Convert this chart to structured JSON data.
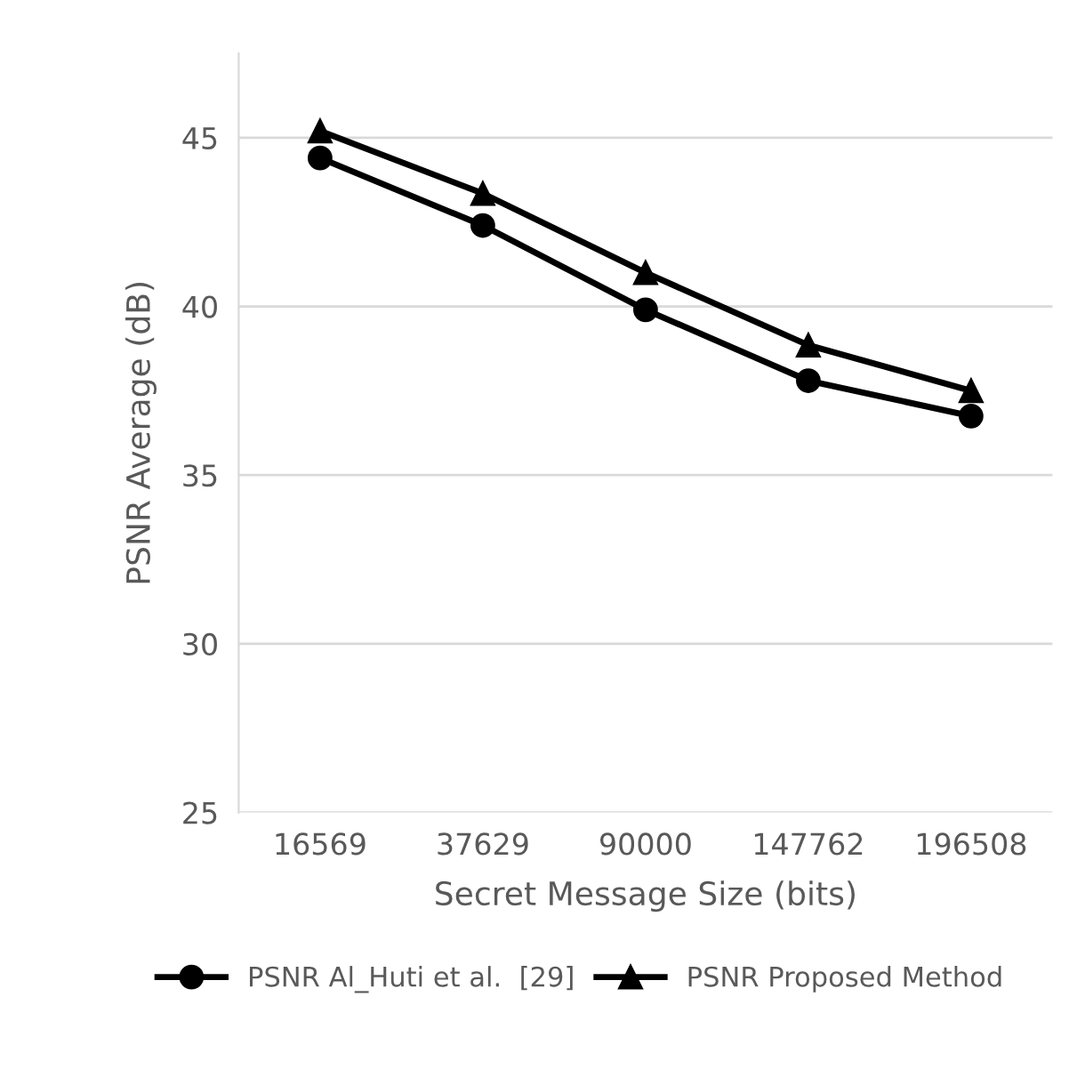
{
  "chart_data": {
    "type": "line",
    "xlabel": "Secret Message Size (bits)",
    "ylabel": "PSNR Average (dB)",
    "categories": [
      "16569",
      "37629",
      "90000",
      "147762",
      "196508"
    ],
    "series": [
      {
        "name": "PSNR Al_Huti et al.  [29]",
        "color": "#000000",
        "marker": "circle",
        "values": [
          44.4,
          42.4,
          39.9,
          37.8,
          36.75
        ]
      },
      {
        "name": "PSNR Proposed Method",
        "color": "#000000",
        "marker": "triangle",
        "values": [
          45.2,
          43.35,
          41.0,
          38.85,
          37.5
        ]
      }
    ],
    "ylim": [
      25,
      47.5
    ],
    "yticks": [
      25,
      30,
      35,
      40,
      45
    ],
    "grid": "y",
    "legend": "bottom",
    "line_style": "solid"
  }
}
